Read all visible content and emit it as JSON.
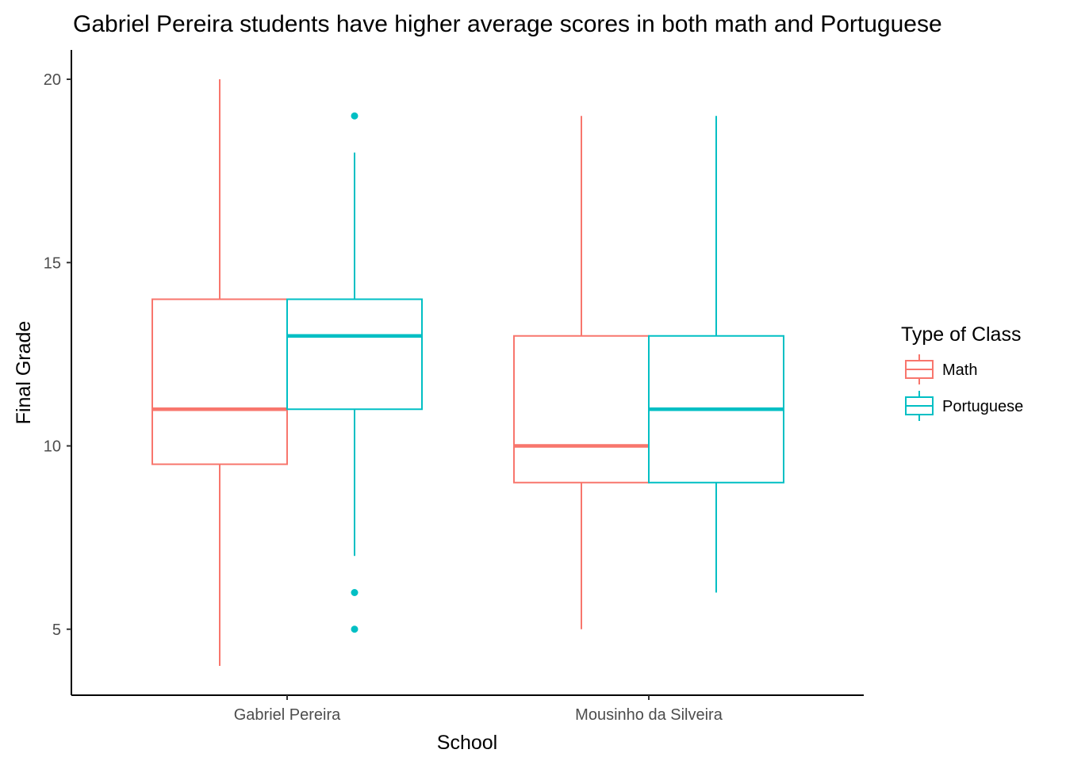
{
  "chart_data": {
    "type": "boxplot",
    "title": "Gabriel Pereira students have higher average scores in both math and Portuguese",
    "xlabel": "School",
    "ylabel": "Final Grade",
    "categories": [
      "Gabriel Pereira",
      "Mousinho da Silveira"
    ],
    "y_ticks": [
      5,
      10,
      15,
      20
    ],
    "ylim": [
      3.2,
      20.8
    ],
    "grid": false,
    "legend": {
      "title": "Type of Class",
      "position": "right"
    },
    "series": [
      {
        "name": "Math",
        "color": "#F8766D",
        "boxes": [
          {
            "category": "Gabriel Pereira",
            "min": 4,
            "q1": 9.5,
            "median": 11,
            "q3": 14,
            "max": 20,
            "outliers": []
          },
          {
            "category": "Mousinho da Silveira",
            "min": 5,
            "q1": 9,
            "median": 10,
            "q3": 13,
            "max": 19,
            "outliers": []
          }
        ]
      },
      {
        "name": "Portuguese",
        "color": "#00BFC4",
        "boxes": [
          {
            "category": "Gabriel Pereira",
            "min": 7,
            "q1": 11,
            "median": 13,
            "q3": 14,
            "max": 18,
            "outliers": [
              19,
              6,
              5
            ]
          },
          {
            "category": "Mousinho da Silveira",
            "min": 6,
            "q1": 9,
            "median": 11,
            "q3": 13,
            "max": 19,
            "outliers": []
          }
        ]
      }
    ]
  }
}
